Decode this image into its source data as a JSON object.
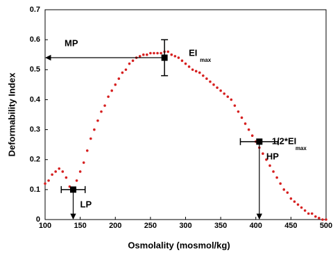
{
  "chart_data": {
    "type": "scatter",
    "xlabel": "Osmolality (mosmol/kg)",
    "ylabel": "Deformability Index",
    "xlim": [
      100,
      500
    ],
    "ylim": [
      0,
      0.7
    ],
    "xticks": [
      100,
      150,
      200,
      250,
      300,
      350,
      400,
      450,
      500
    ],
    "yticks": [
      0,
      0.1,
      0.2,
      0.3,
      0.4,
      0.5,
      0.6,
      0.7
    ],
    "grid": false,
    "color": "#d62020",
    "x": [
      100,
      105,
      110,
      115,
      120,
      125,
      130,
      135,
      140,
      145,
      150,
      155,
      160,
      165,
      170,
      175,
      180,
      185,
      190,
      195,
      200,
      205,
      210,
      215,
      220,
      225,
      230,
      235,
      240,
      245,
      250,
      255,
      260,
      265,
      270,
      275,
      280,
      285,
      290,
      295,
      300,
      305,
      310,
      315,
      320,
      325,
      330,
      335,
      340,
      345,
      350,
      355,
      360,
      365,
      370,
      375,
      380,
      385,
      390,
      395,
      400,
      405,
      410,
      415,
      420,
      425,
      430,
      435,
      440,
      445,
      450,
      455,
      460,
      465,
      470,
      475,
      480,
      485,
      490,
      495,
      500
    ],
    "values": [
      0.12,
      0.13,
      0.15,
      0.16,
      0.17,
      0.16,
      0.14,
      0.11,
      0.1,
      0.13,
      0.16,
      0.19,
      0.23,
      0.27,
      0.3,
      0.33,
      0.36,
      0.38,
      0.41,
      0.43,
      0.45,
      0.47,
      0.49,
      0.5,
      0.52,
      0.53,
      0.54,
      0.545,
      0.55,
      0.55,
      0.555,
      0.555,
      0.555,
      0.555,
      0.56,
      0.56,
      0.55,
      0.545,
      0.54,
      0.53,
      0.52,
      0.51,
      0.5,
      0.495,
      0.49,
      0.48,
      0.47,
      0.46,
      0.45,
      0.44,
      0.43,
      0.42,
      0.41,
      0.4,
      0.38,
      0.36,
      0.34,
      0.32,
      0.3,
      0.28,
      0.26,
      0.24,
      0.22,
      0.2,
      0.18,
      0.16,
      0.14,
      0.12,
      0.1,
      0.09,
      0.07,
      0.06,
      0.05,
      0.04,
      0.03,
      0.02,
      0.02,
      0.01,
      0.005,
      0,
      0
    ],
    "points": [
      {
        "name": "LP",
        "x": 140,
        "y": 0.1,
        "xerr": 17
      },
      {
        "name": "MP",
        "x": 270,
        "y": 0.54,
        "yerr": 0.06
      },
      {
        "name": "HP",
        "x": 405,
        "y": 0.26,
        "xerr": 27
      }
    ],
    "annotations": [
      {
        "text": "EI",
        "sub": "max"
      },
      {
        "text": "1/2*EI",
        "sub": "max"
      }
    ]
  }
}
